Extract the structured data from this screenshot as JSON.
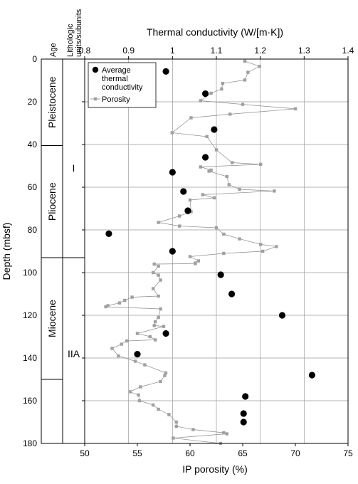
{
  "chart_data": {
    "type": "scatter",
    "y_axis": {
      "label": "Depth (mbsf)",
      "range": [
        0,
        180
      ],
      "ticks": [
        0,
        20,
        40,
        60,
        80,
        100,
        120,
        140,
        160,
        180
      ],
      "reversed": true
    },
    "x_axis_top": {
      "label": "Thermal conductivity (W/[m·K])",
      "range": [
        0.8,
        1.4
      ],
      "ticks": [
        "0.8",
        "0.9",
        "1",
        "1.1",
        "1.2",
        "1.3",
        "1.4"
      ]
    },
    "x_axis_bottom": {
      "label": "IP porosity (%)",
      "range": [
        50,
        75
      ],
      "ticks": [
        "50",
        "55",
        "60",
        "65",
        "70",
        "75"
      ]
    },
    "grid": true,
    "columns": {
      "age_title": "Age",
      "litho_title_1": "Lithologic",
      "litho_title_2": "units/subunits"
    },
    "ages": [
      {
        "label": "Pleistocene",
        "top": 0,
        "bottom": 40.5
      },
      {
        "label": "Pliocene",
        "top": 40.5,
        "bottom": 93
      },
      {
        "label": "Miocene",
        "top": 93,
        "bottom": 150
      },
      {
        "label": "",
        "top": 150,
        "bottom": 180
      }
    ],
    "units": [
      {
        "label": "I",
        "top": 0,
        "bottom": 93,
        "label_depth": 51
      },
      {
        "label": "IIA",
        "top": 93,
        "bottom": 180,
        "label_depth": 138
      }
    ],
    "legend": {
      "position": "top-left",
      "conductivity_label": [
        "Average",
        "thermal",
        "conductivity"
      ],
      "porosity_label": "Porosity"
    },
    "series": [
      {
        "name": "Average thermal conductivity",
        "axis": "top",
        "marker": "circle",
        "color": "#000000",
        "points": [
          [
            0.985,
            5.8
          ],
          [
            1.075,
            16.2
          ],
          [
            1.095,
            33.0
          ],
          [
            1.075,
            46.0
          ],
          [
            1.0,
            53.0
          ],
          [
            1.025,
            62.0
          ],
          [
            1.035,
            71.0
          ],
          [
            0.855,
            81.8
          ],
          [
            1.0,
            90.0
          ],
          [
            1.11,
            101.0
          ],
          [
            1.135,
            110.0
          ],
          [
            1.25,
            120.0
          ],
          [
            0.985,
            128.5
          ],
          [
            0.92,
            138.2
          ],
          [
            1.318,
            148.0
          ],
          [
            1.166,
            158.0
          ],
          [
            1.162,
            166.0
          ],
          [
            1.162,
            170.0
          ]
        ]
      },
      {
        "name": "Porosity",
        "axis": "bottom",
        "marker": "square",
        "color": "#a0a0a0",
        "points": [
          [
            65.2,
            1.0
          ],
          [
            66.6,
            3.4
          ],
          [
            65.5,
            6.2
          ],
          [
            65.2,
            9.8
          ],
          [
            63.1,
            11.4
          ],
          [
            63.0,
            14.0
          ],
          [
            62.0,
            16.0
          ],
          [
            61.0,
            19.5
          ],
          [
            65.0,
            21.2
          ],
          [
            70.0,
            23.3
          ],
          [
            63.8,
            25.8
          ],
          [
            60.1,
            27.5
          ],
          [
            58.3,
            34.5
          ],
          [
            61.6,
            36.3
          ],
          [
            62.5,
            42.5
          ],
          [
            64.0,
            48.5
          ],
          [
            66.7,
            49.3
          ],
          [
            61.0,
            50.5
          ],
          [
            62.0,
            52.0
          ],
          [
            61.8,
            52.5
          ],
          [
            63.5,
            55.0
          ],
          [
            63.7,
            58.8
          ],
          [
            64.7,
            61.0
          ],
          [
            68.0,
            61.8
          ],
          [
            61.2,
            63.5
          ],
          [
            62.3,
            65.0
          ],
          [
            60.0,
            66.0
          ],
          [
            60.1,
            71.5
          ],
          [
            59.8,
            72.0
          ],
          [
            59.0,
            73.5
          ],
          [
            57.0,
            76.5
          ],
          [
            59.0,
            78.2
          ],
          [
            62.5,
            79.0
          ],
          [
            63.2,
            82.0
          ],
          [
            64.7,
            84.2
          ],
          [
            66.7,
            86.8
          ],
          [
            68.2,
            87.8
          ],
          [
            66.9,
            90.0
          ],
          [
            63.2,
            91.0
          ],
          [
            60.0,
            92.5
          ],
          [
            60.8,
            94.5
          ],
          [
            60.5,
            95.5
          ],
          [
            60.5,
            95.8
          ],
          [
            56.6,
            96.0
          ],
          [
            57.0,
            97.0
          ],
          [
            56.5,
            100.0
          ],
          [
            57.0,
            101.2
          ],
          [
            57.2,
            103.5
          ],
          [
            56.5,
            107.5
          ],
          [
            57.0,
            111.0
          ],
          [
            54.5,
            111.5
          ],
          [
            53.8,
            113.0
          ],
          [
            53.3,
            114.2
          ],
          [
            52.2,
            115.5
          ],
          [
            52.0,
            116.0
          ],
          [
            57.2,
            117.0
          ],
          [
            57.0,
            121.0
          ],
          [
            56.7,
            123.0
          ],
          [
            56.6,
            124.8
          ],
          [
            57.5,
            125.2
          ],
          [
            55.0,
            128.5
          ],
          [
            56.2,
            130.0
          ],
          [
            56.7,
            131.5
          ],
          [
            54.0,
            132.0
          ],
          [
            53.5,
            133.5
          ],
          [
            52.6,
            135.5
          ],
          [
            53.2,
            139.0
          ],
          [
            54.8,
            141.5
          ],
          [
            55.7,
            143.2
          ],
          [
            57.7,
            147.0
          ],
          [
            57.6,
            148.2
          ],
          [
            57.2,
            151.0
          ],
          [
            55.3,
            153.5
          ],
          [
            54.3,
            155.8
          ],
          [
            55.1,
            157.3
          ],
          [
            55.2,
            160.0
          ],
          [
            56.5,
            162.0
          ],
          [
            57.0,
            164.0
          ],
          [
            58.0,
            166.5
          ],
          [
            58.7,
            170.0
          ],
          [
            58.7,
            172.0
          ],
          [
            60.3,
            173.5
          ],
          [
            63.2,
            175.0
          ],
          [
            63.5,
            175.5
          ],
          [
            58.4,
            177.5
          ],
          [
            62.9,
            180.0
          ]
        ]
      }
    ]
  }
}
